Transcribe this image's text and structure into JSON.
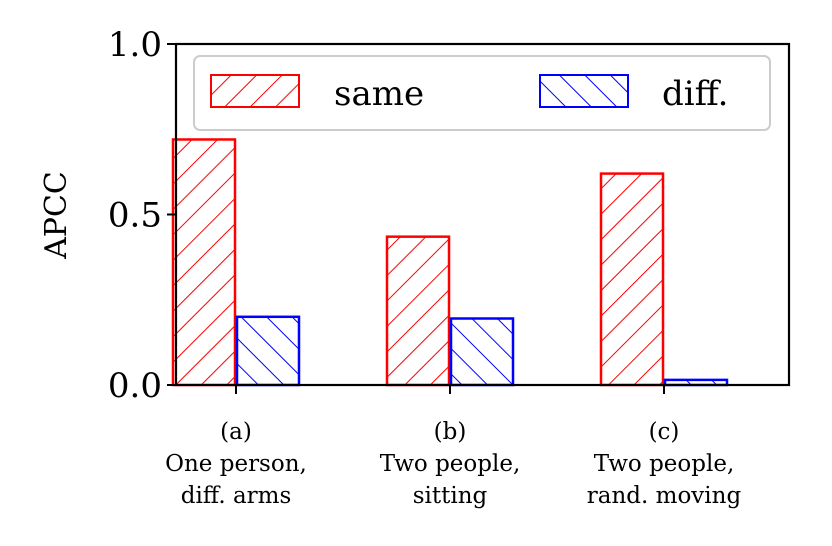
{
  "chart_data": {
    "type": "bar",
    "title": "",
    "xlabel": "",
    "ylabel": "APCC",
    "ylim": [
      0,
      1.0
    ],
    "yticks": [
      "0.0",
      "0.5",
      "1.0"
    ],
    "categories": [
      [
        "(a)",
        "One person,",
        "diff. arms"
      ],
      [
        "(b)",
        "Two people,",
        "sitting"
      ],
      [
        "(c)",
        "Two people,",
        "rand. moving"
      ]
    ],
    "series": [
      {
        "name": "same",
        "values": [
          0.72,
          0.435,
          0.62
        ],
        "color": "#ff0000",
        "hatch": "forward-diagonal"
      },
      {
        "name": "diff.",
        "values": [
          0.2,
          0.195,
          0.015
        ],
        "color": "#0000ff",
        "hatch": "back-diagonal"
      }
    ],
    "grid": false,
    "legend": "top, two columns"
  }
}
